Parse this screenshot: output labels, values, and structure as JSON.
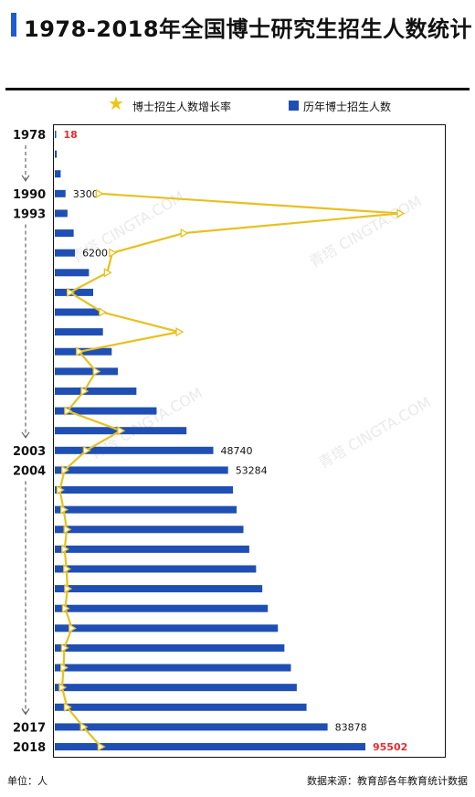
{
  "title": "1978-2018年全国博士研究生招生人数统计",
  "legend": {
    "growth_label": "博士招生人数增长率",
    "count_label": "历年博士招生人数",
    "growth_color": "#e8c020",
    "count_color": "#1f4fb5"
  },
  "footer": {
    "unit": "单位：人",
    "source": "数据来源：教育部各年教育统计数据"
  },
  "watermark_text": "青塔 CINGTA.COM",
  "chart_data": {
    "type": "bar",
    "orientation": "horizontal",
    "series": [
      {
        "name": "历年博士招生人数",
        "values": [
          18,
          600,
          1800,
          3300,
          3900,
          5800,
          6200,
          10500,
          11800,
          14200,
          14800,
          17500,
          19400,
          25100,
          31300,
          40500,
          48740,
          53284,
          54800,
          55900,
          58000,
          59800,
          61900,
          63800,
          65500,
          68600,
          70600,
          72600,
          74400,
          77400,
          83878,
          95502
        ],
        "labels": {
          "0": "18",
          "3": "3300",
          "6": "6200",
          "16": "48740",
          "17": "53284",
          "30": "83878",
          "31": "95502"
        }
      },
      {
        "name": "博士招生人数增长率",
        "values": [
          null,
          null,
          null,
          13.3,
          108.0,
          40.0,
          17.5,
          15.9,
          4.2,
          14.3,
          38.5,
          7.1,
          12.4,
          8.6,
          3.4,
          20.1,
          9.3,
          2.5,
          1.0,
          2.2,
          3.2,
          2.5,
          3.1,
          3.4,
          2.7,
          4.8,
          2.4,
          2.2,
          1.7,
          3.3,
          8.4,
          13.9
        ]
      }
    ],
    "year_labels": {
      "0": "1978",
      "3": "1990",
      "4": "1993",
      "16": "2003",
      "17": "2004",
      "30": "2017",
      "31": "2018"
    },
    "highlight_label_color": "#e03030"
  }
}
